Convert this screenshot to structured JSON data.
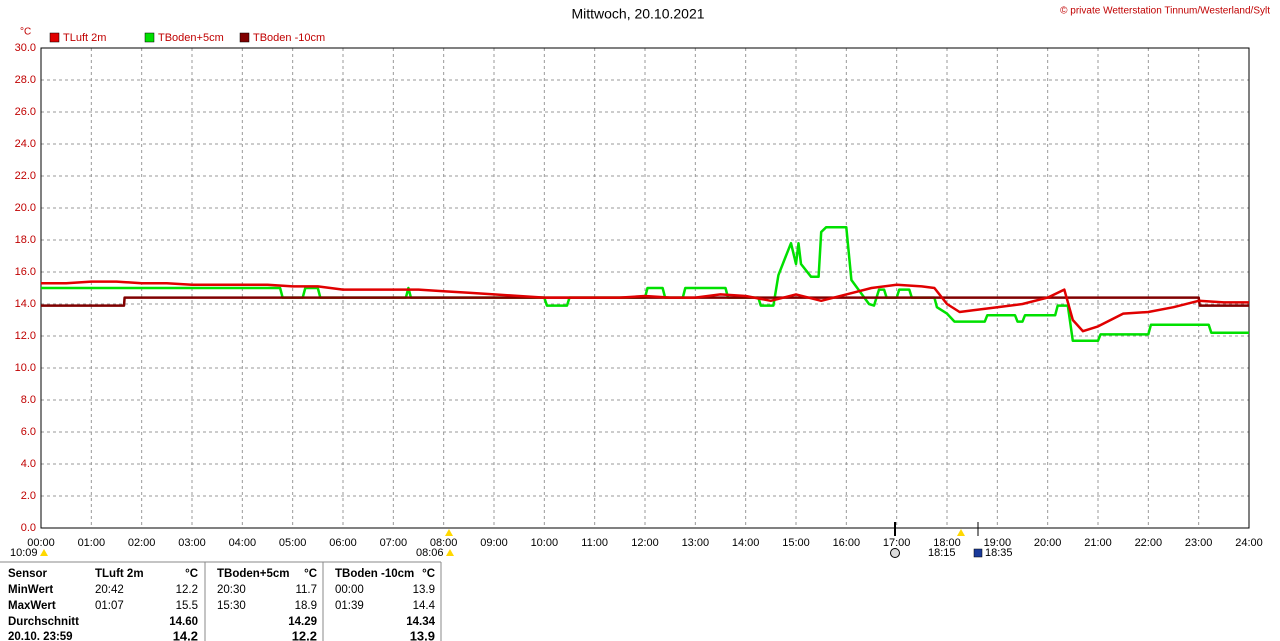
{
  "chart_data": {
    "type": "line",
    "title": "Mittwoch, 20.10.2021",
    "credit": "© private Wetterstation Tinnum/Westerland/Sylt",
    "y_unit": "°C",
    "xlim": [
      0,
      24
    ],
    "ylim": [
      0,
      30
    ],
    "grid": true,
    "xticks": [
      {
        "value": 0,
        "label": "00:00"
      },
      {
        "value": 1,
        "label": "01:00"
      },
      {
        "value": 2,
        "label": "02:00"
      },
      {
        "value": 3,
        "label": "03:00"
      },
      {
        "value": 4,
        "label": "04:00"
      },
      {
        "value": 5,
        "label": "05:00"
      },
      {
        "value": 6,
        "label": "06:00"
      },
      {
        "value": 7,
        "label": "07:00"
      },
      {
        "value": 8,
        "label": "08:00"
      },
      {
        "value": 9,
        "label": "09:00"
      },
      {
        "value": 10,
        "label": "10:00"
      },
      {
        "value": 11,
        "label": "11:00"
      },
      {
        "value": 12,
        "label": "12:00"
      },
      {
        "value": 13,
        "label": "13:00"
      },
      {
        "value": 14,
        "label": "14:00"
      },
      {
        "value": 15,
        "label": "15:00"
      },
      {
        "value": 16,
        "label": "16:00"
      },
      {
        "value": 17,
        "label": "17:00"
      },
      {
        "value": 18,
        "label": "18:00"
      },
      {
        "value": 19,
        "label": "19:00"
      },
      {
        "value": 20,
        "label": "20:00"
      },
      {
        "value": 21,
        "label": "21:00"
      },
      {
        "value": 22,
        "label": "22:00"
      },
      {
        "value": 23,
        "label": "23:00"
      },
      {
        "value": 24,
        "label": "24:00"
      }
    ],
    "yticks": [
      {
        "value": 0,
        "label": "0.0"
      },
      {
        "value": 2,
        "label": "2.0"
      },
      {
        "value": 4,
        "label": "4.0"
      },
      {
        "value": 6,
        "label": "6.0"
      },
      {
        "value": 8,
        "label": "8.0"
      },
      {
        "value": 10,
        "label": "10.0"
      },
      {
        "value": 12,
        "label": "12.0"
      },
      {
        "value": 14,
        "label": "14.0"
      },
      {
        "value": 16,
        "label": "16.0"
      },
      {
        "value": 18,
        "label": "18.0"
      },
      {
        "value": 20,
        "label": "20.0"
      },
      {
        "value": 22,
        "label": "22.0"
      },
      {
        "value": 24,
        "label": "24.0"
      },
      {
        "value": 26,
        "label": "26.0"
      },
      {
        "value": 28,
        "label": "28.0"
      },
      {
        "value": 30,
        "label": "30.0"
      }
    ],
    "series": [
      {
        "name": "TLuft 2m",
        "color": "#e00000",
        "x": [
          0,
          0.5,
          1,
          1.5,
          2,
          2.5,
          3,
          3.5,
          4,
          4.5,
          5,
          5.5,
          6,
          6.5,
          7,
          7.5,
          8,
          8.5,
          9,
          9.5,
          10,
          10.5,
          11,
          11.5,
          12,
          12.5,
          13,
          13.5,
          14,
          14.5,
          15,
          15.5,
          16,
          16.5,
          17,
          17.5,
          17.75,
          18,
          18.25,
          18.5,
          19,
          19.5,
          20,
          20.33,
          20.5,
          20.7,
          21,
          21.5,
          22,
          22.5,
          23,
          23.5,
          24
        ],
        "values": [
          15.3,
          15.3,
          15.4,
          15.4,
          15.3,
          15.3,
          15.2,
          15.2,
          15.2,
          15.2,
          15.1,
          15.1,
          14.9,
          14.9,
          14.9,
          14.9,
          14.8,
          14.7,
          14.6,
          14.5,
          14.4,
          14.4,
          14.4,
          14.4,
          14.5,
          14.4,
          14.4,
          14.6,
          14.5,
          14.2,
          14.6,
          14.2,
          14.6,
          15.0,
          15.2,
          15.1,
          15.0,
          14.0,
          13.5,
          13.6,
          13.8,
          14.0,
          14.4,
          14.9,
          13.0,
          12.3,
          12.6,
          13.4,
          13.5,
          13.8,
          14.2,
          14.1,
          14.1
        ]
      },
      {
        "name": "TBoden+5cm",
        "color": "#00e000",
        "x": [
          0,
          4.75,
          4.8,
          5.2,
          5.25,
          5.5,
          5.55,
          7.25,
          7.3,
          7.35,
          10,
          10.05,
          10.45,
          10.5,
          12,
          12.05,
          12.35,
          12.4,
          12.75,
          12.8,
          13.6,
          13.65,
          14.25,
          14.3,
          14.55,
          14.65,
          14.8,
          14.9,
          15.0,
          15.05,
          15.1,
          15.3,
          15.45,
          15.5,
          15.6,
          16.0,
          16.1,
          16.45,
          16.55,
          16.65,
          16.75,
          16.8,
          17.0,
          17.05,
          17.25,
          17.3,
          17.75,
          17.8,
          18.0,
          18.15,
          18.75,
          18.8,
          19.35,
          19.4,
          19.5,
          19.55,
          20.15,
          20.2,
          20.4,
          20.5,
          21.0,
          21.05,
          22.0,
          22.05,
          23.2,
          23.25,
          24
        ],
        "values": [
          15.0,
          15.0,
          14.4,
          14.4,
          15.0,
          15.0,
          14.4,
          14.4,
          15.0,
          14.4,
          14.4,
          13.9,
          13.9,
          14.4,
          14.4,
          15.0,
          15.0,
          14.4,
          14.4,
          15.0,
          15.0,
          14.4,
          14.4,
          13.9,
          13.9,
          15.8,
          17.0,
          17.8,
          16.5,
          17.8,
          16.5,
          15.7,
          15.7,
          18.5,
          18.8,
          18.8,
          15.5,
          14.0,
          13.9,
          14.9,
          14.9,
          14.4,
          14.4,
          14.9,
          14.9,
          14.4,
          14.4,
          13.8,
          13.4,
          12.9,
          12.9,
          13.3,
          13.3,
          12.9,
          12.9,
          13.3,
          13.3,
          13.9,
          13.9,
          11.7,
          11.7,
          12.1,
          12.1,
          12.7,
          12.7,
          12.2,
          12.2
        ]
      },
      {
        "name": "TBoden -10cm",
        "color": "#800000",
        "x": [
          0,
          1.65,
          1.66,
          23.0,
          23.02,
          24
        ],
        "values": [
          13.9,
          13.9,
          14.4,
          14.4,
          13.9,
          13.9
        ]
      }
    ],
    "annotations": [
      "10:09",
      "08:06",
      "18:15",
      "18:35"
    ]
  },
  "table": {
    "rows": [
      [
        "Sensor",
        "TLuft 2m",
        "°C",
        "TBoden+5cm",
        "°C",
        "TBoden -10cm",
        "°C"
      ],
      [
        "MinWert",
        "20:42",
        "12.2",
        "20:30",
        "11.7",
        "00:00",
        "13.9"
      ],
      [
        "MaxWert",
        "01:07",
        "15.5",
        "15:30",
        "18.9",
        "01:39",
        "14.4"
      ],
      [
        "Durchschnitt",
        null,
        "14.60",
        null,
        "14.29",
        null,
        "14.34"
      ],
      [
        "20.10. 23:59",
        null,
        "14.2",
        null,
        "12.2",
        null,
        "13.9"
      ]
    ]
  }
}
